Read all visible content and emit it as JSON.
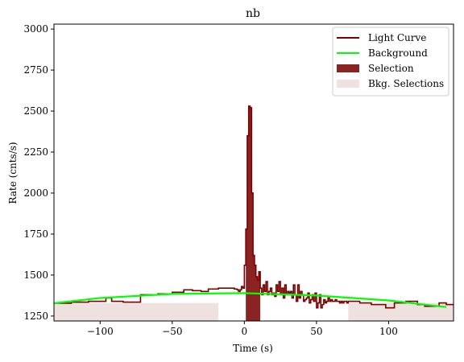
{
  "chart_data": {
    "type": "line",
    "title": "nb",
    "xlabel": "Time (s)",
    "ylabel": "Rate (cnts/s)",
    "xlim": [
      -132,
      145
    ],
    "ylim": [
      1220,
      3030
    ],
    "xticks": [
      -100,
      -50,
      0,
      50,
      100
    ],
    "yticks": [
      1250,
      1500,
      1750,
      2000,
      2250,
      2500,
      2750,
      3000
    ],
    "xtick_labels": [
      "−100",
      "−50",
      "0",
      "50",
      "100"
    ],
    "ytick_labels": [
      "1250",
      "1500",
      "1750",
      "2000",
      "2250",
      "2500",
      "2750",
      "3000"
    ],
    "legend_position": "upper right",
    "legend": [
      "Light Curve",
      "Background",
      "Selection",
      "Bkg. Selections"
    ],
    "colors": {
      "light_curve": "#7a0000",
      "background": "#00ff00",
      "selection": "#8b2323",
      "bkg_selection": "#f0e1e1"
    },
    "light_curve": {
      "x": [
        -132,
        -120,
        -108,
        -96,
        -92,
        -84,
        -72,
        -60,
        -50,
        -42,
        -36,
        -30,
        -25,
        -18,
        -12,
        -8,
        -7,
        -6,
        -5,
        -4,
        -3,
        -2,
        -1,
        0,
        1,
        2,
        3,
        4,
        5,
        6,
        7,
        8,
        9,
        10,
        11,
        12,
        13,
        14,
        15,
        16,
        17,
        18,
        19,
        20,
        21,
        22,
        23,
        24,
        25,
        26,
        27,
        28,
        29,
        30,
        31,
        32,
        33,
        34,
        35,
        36,
        37,
        38,
        39,
        40,
        41,
        42,
        43,
        44,
        45,
        46,
        47,
        48,
        49,
        50,
        51,
        52,
        53,
        54,
        55,
        56,
        57,
        58,
        59,
        60,
        61,
        62,
        63,
        64,
        65,
        66,
        67,
        68,
        69,
        70,
        71,
        72,
        80,
        88,
        98,
        104,
        112,
        120,
        125,
        135,
        140,
        145
      ],
      "y": [
        1328,
        1335,
        1340,
        1360,
        1340,
        1335,
        1380,
        1385,
        1395,
        1410,
        1405,
        1400,
        1415,
        1420,
        1420,
        1420,
        1415,
        1415,
        1410,
        1400,
        1410,
        1430,
        1420,
        1560,
        1780,
        2350,
        2530,
        2520,
        2000,
        1620,
        1560,
        1490,
        1470,
        1520,
        1420,
        1380,
        1440,
        1400,
        1460,
        1380,
        1400,
        1420,
        1380,
        1390,
        1370,
        1440,
        1400,
        1460,
        1380,
        1420,
        1360,
        1440,
        1380,
        1400,
        1390,
        1400,
        1360,
        1440,
        1380,
        1340,
        1440,
        1360,
        1400,
        1380,
        1340,
        1350,
        1360,
        1390,
        1330,
        1350,
        1380,
        1340,
        1390,
        1300,
        1330,
        1380,
        1300,
        1320,
        1350,
        1330,
        1340,
        1360,
        1340,
        1350,
        1340,
        1340,
        1350,
        1340,
        1340,
        1330,
        1340,
        1330,
        1340,
        1340,
        1330,
        1340,
        1330,
        1320,
        1300,
        1330,
        1340,
        1320,
        1310,
        1330,
        1320,
        1320
      ]
    },
    "background": {
      "x": [
        -132,
        -100,
        -50,
        0,
        50,
        100,
        140
      ],
      "y": [
        1328,
        1360,
        1385,
        1390,
        1375,
        1345,
        1305
      ]
    },
    "selection": {
      "start": 1,
      "end": 11
    },
    "bkg_selections": [
      [
        -132,
        -18
      ],
      [
        72,
        145
      ]
    ]
  }
}
